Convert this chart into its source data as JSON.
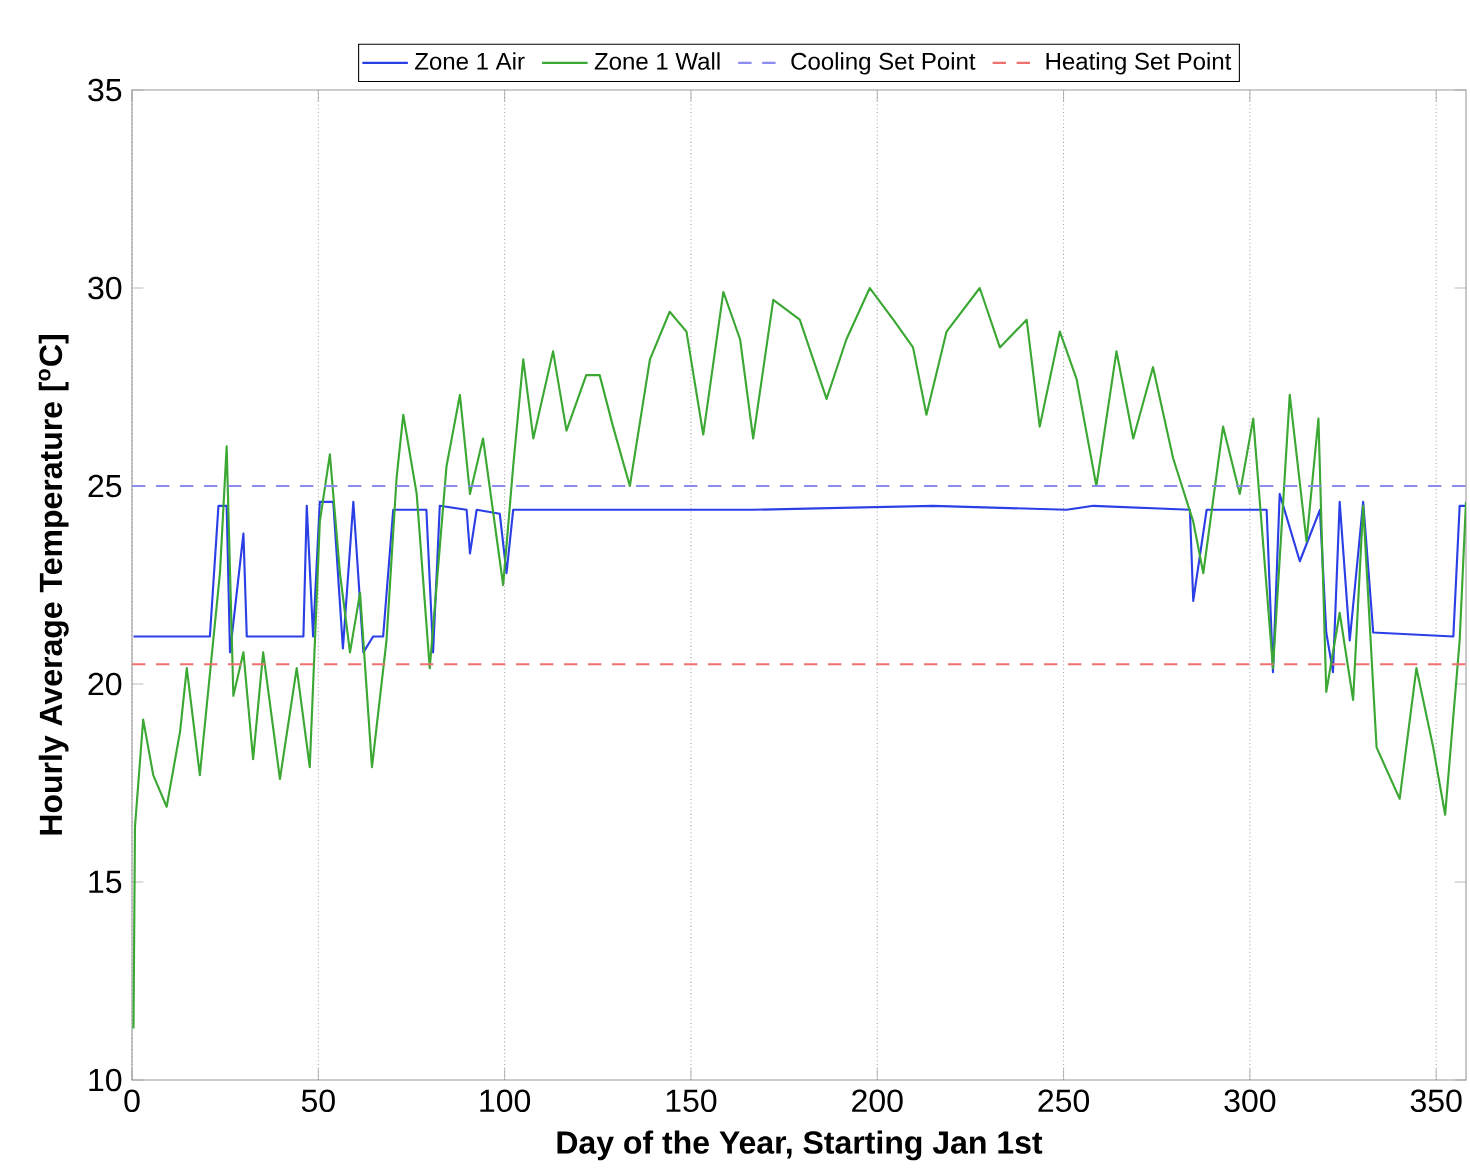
{
  "chart_data": {
    "type": "line",
    "xlabel": "Day of the Year, Starting Jan 1st",
    "ylabel": "Hourly Average Temperature [$^{o}$C]",
    "xlim": [
      0,
      358
    ],
    "ylim": [
      10,
      35
    ],
    "xticks": [
      0,
      50,
      100,
      150,
      200,
      250,
      300,
      350
    ],
    "yticks": [
      10,
      15,
      20,
      25,
      30,
      35
    ],
    "grid": "x",
    "legend": "top",
    "series": [
      {
        "name": "Zone 1 Air",
        "color": "#2a3fe6",
        "line_style": "solid",
        "x": [
          0.4,
          20.9,
          23.2,
          25.4,
          26.3,
          29.9,
          30.8,
          46,
          46.9,
          48.6,
          50.4,
          54,
          56.6,
          59.4,
          62.1,
          64.7,
          67.4,
          70.1,
          79,
          80.8,
          82.6,
          89.8,
          90.7,
          92.5,
          98.7,
          100.5,
          102.3,
          130.9,
          152.4,
          166.7,
          215,
          250.8,
          258,
          283.9,
          284.8,
          288.4,
          304.5,
          306.2,
          308,
          313.4,
          318.8,
          320.5,
          322.3,
          324.1,
          326.8,
          330.4,
          333.1,
          354.6,
          356.3,
          358
        ],
        "values": [
          21.2,
          21.2,
          24.5,
          24.5,
          20.8,
          23.8,
          21.2,
          21.2,
          24.5,
          21.2,
          24.6,
          24.6,
          20.9,
          24.6,
          20.8,
          21.2,
          21.2,
          24.4,
          24.4,
          20.8,
          24.5,
          24.4,
          23.3,
          24.4,
          24.3,
          22.8,
          24.4,
          24.4,
          24.4,
          24.4,
          24.5,
          24.4,
          24.5,
          24.4,
          22.1,
          24.4,
          24.4,
          20.3,
          24.8,
          23.1,
          24.4,
          21.3,
          20.3,
          24.6,
          21.1,
          24.6,
          21.3,
          21.2,
          24.5,
          24.5
        ]
      },
      {
        "name": "Zone 1 Wall",
        "color": "#3aa832",
        "line_style": "solid",
        "x": [
          0.4,
          0.8,
          3,
          5.7,
          9.3,
          12.9,
          14.7,
          18.2,
          20,
          23.6,
          25.4,
          27.2,
          29.9,
          32.5,
          35.2,
          39.7,
          44.2,
          47.7,
          50.4,
          53.1,
          55.8,
          58.5,
          61.2,
          64.4,
          68.3,
          71,
          72.8,
          76.4,
          79.9,
          84.4,
          88,
          90.7,
          94.2,
          99.6,
          102.3,
          105,
          107.7,
          113,
          116.6,
          121.9,
          125.5,
          129.1,
          133.6,
          139,
          144.3,
          148.8,
          153.3,
          158.7,
          163.2,
          166.7,
          172.1,
          179.2,
          186.4,
          191.7,
          198,
          204.3,
          209.6,
          213.2,
          218.6,
          227.5,
          232.9,
          240.1,
          243.6,
          249,
          253.5,
          258.8,
          264.2,
          268.7,
          274,
          279.4,
          284.8,
          287.5,
          292.8,
          297.3,
          300.9,
          306.2,
          310.7,
          315.2,
          318.4,
          320.5,
          324.1,
          327.7,
          330.4,
          334,
          340.2,
          344.7,
          349.2,
          352.4,
          356.3,
          358
        ],
        "values": [
          11.3,
          16.4,
          19.1,
          17.7,
          16.9,
          18.8,
          20.4,
          17.7,
          19.4,
          22.8,
          26.0,
          19.7,
          20.8,
          18.1,
          20.8,
          17.6,
          20.4,
          17.9,
          24.1,
          25.8,
          22.8,
          20.8,
          22.3,
          17.9,
          21.1,
          25.2,
          26.8,
          24.8,
          20.4,
          25.5,
          27.3,
          24.8,
          26.2,
          22.5,
          25.5,
          28.2,
          26.2,
          28.4,
          26.4,
          27.8,
          27.8,
          26.5,
          25.0,
          28.2,
          29.4,
          28.9,
          26.3,
          29.9,
          28.7,
          26.2,
          29.7,
          29.2,
          27.2,
          28.7,
          30.0,
          29.2,
          28.5,
          26.8,
          28.9,
          30.0,
          28.5,
          29.2,
          26.5,
          28.9,
          27.7,
          25.0,
          28.4,
          26.2,
          28.0,
          25.7,
          24.1,
          22.8,
          26.5,
          24.8,
          26.7,
          20.4,
          27.3,
          23.6,
          26.7,
          19.8,
          21.8,
          19.6,
          24.5,
          18.4,
          17.1,
          20.4,
          18.4,
          16.7,
          21.1,
          24.6
        ]
      },
      {
        "name": "Cooling Set Point",
        "color": "#8c8cf0",
        "line_style": "dashed",
        "x": [
          0,
          358
        ],
        "values": [
          25,
          25
        ]
      },
      {
        "name": "Heating Set Point",
        "color": "#f07070",
        "line_style": "dashed",
        "x": [
          0,
          358
        ],
        "values": [
          20.5,
          20.5
        ]
      }
    ]
  }
}
